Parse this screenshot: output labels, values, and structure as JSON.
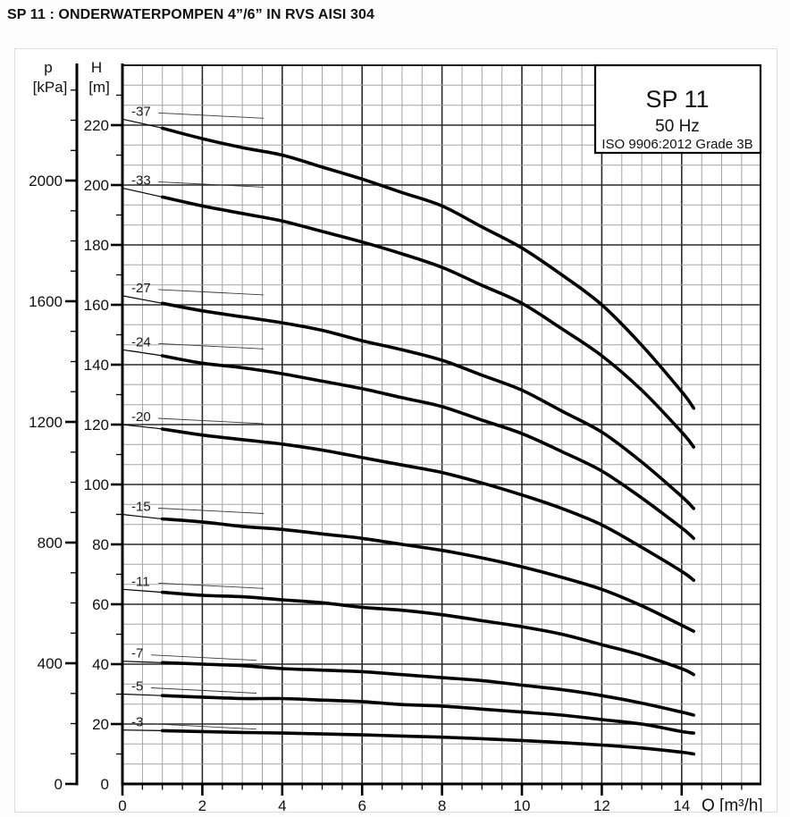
{
  "page_title": "SP 11 : ONDERWATERPOMPEN 4”/6” IN RVS AISI 304",
  "info_box": {
    "model": "SP 11",
    "frequency": "50 Hz",
    "standard": "ISO 9906:2012 Grade 3B"
  },
  "axes": {
    "pressure": {
      "name": "p",
      "unit": "[kPa]",
      "major_ticks": [
        0,
        400,
        800,
        1200,
        1600,
        2000
      ],
      "minor_step": 100,
      "minor_max": 2300
    },
    "head": {
      "name": "H",
      "unit": "[m]",
      "major_ticks": [
        0,
        20,
        40,
        60,
        80,
        100,
        120,
        140,
        160,
        180,
        200,
        220
      ],
      "minor_step": 10,
      "minor_max": 230,
      "max": 240
    },
    "flow": {
      "label": "Q [m³/h]",
      "major_ticks": [
        0,
        2,
        4,
        6,
        8,
        10,
        12,
        14
      ],
      "minor_step": 0.5,
      "max": 16
    }
  },
  "chart_data": {
    "type": "line",
    "title": "SP 11 50 Hz submersible pump performance curves (head vs flow)",
    "xlabel": "Q [m³/h]",
    "ylabel": "H [m]",
    "y2label": "p [kPa]",
    "xlim": [
      0,
      16
    ],
    "ylim": [
      0,
      240
    ],
    "y2lim_kpa": [
      0,
      2383
    ],
    "grid": "minor and major, on",
    "legend_position": "top-right box",
    "x": [
      0,
      1,
      2,
      3,
      4,
      5,
      6,
      7,
      8,
      9,
      10,
      11,
      12,
      13,
      14,
      14.3
    ],
    "thick_segment_x": [
      1,
      14.3
    ],
    "series": [
      {
        "name": "-37",
        "values": [
          222,
          219,
          215.5,
          212.5,
          210,
          206,
          202,
          197.5,
          193,
          186,
          179,
          170,
          160,
          146.5,
          131,
          125.5
        ]
      },
      {
        "name": "-33",
        "values": [
          199,
          196,
          193,
          190.5,
          188,
          184.5,
          181,
          177,
          172.5,
          166.5,
          160.5,
          152,
          143,
          131.5,
          117.5,
          112.5
        ]
      },
      {
        "name": "-27",
        "values": [
          163,
          160.5,
          158,
          156,
          154,
          151.5,
          148,
          145,
          141.5,
          136.5,
          131.5,
          124.5,
          117.5,
          107.5,
          96,
          92
        ]
      },
      {
        "name": "-24",
        "values": [
          145,
          143,
          140.5,
          139,
          137,
          134.5,
          132,
          129,
          126,
          121.5,
          117,
          111,
          104.5,
          95.5,
          85.5,
          82
        ]
      },
      {
        "name": "-20",
        "values": [
          120,
          118.5,
          116.5,
          115,
          113.5,
          111.5,
          109,
          106.5,
          104,
          100.5,
          96.5,
          92,
          86.5,
          79,
          71,
          68
        ]
      },
      {
        "name": "-15",
        "values": [
          90,
          88.5,
          87.5,
          86,
          85,
          83.5,
          82,
          80,
          78,
          75.5,
          72.5,
          69,
          65,
          59.5,
          53,
          51
        ]
      },
      {
        "name": "-11",
        "values": [
          65,
          64,
          63,
          62.5,
          61.5,
          60.5,
          59,
          58,
          56.5,
          54.5,
          52.5,
          50,
          46.5,
          43,
          38.5,
          36.5
        ]
      },
      {
        "name": "-7",
        "values": [
          41,
          40.5,
          40,
          39.5,
          38.5,
          38,
          37.5,
          36.5,
          35.5,
          34.5,
          33,
          31.5,
          29.5,
          27,
          24,
          23
        ]
      },
      {
        "name": "-5",
        "values": [
          30,
          29.5,
          29,
          28.5,
          28.5,
          28,
          27.5,
          26.5,
          26,
          25,
          24,
          23,
          21.5,
          20,
          17.5,
          17
        ]
      },
      {
        "name": "-3",
        "values": [
          18,
          17.8,
          17.5,
          17.2,
          17,
          16.7,
          16.4,
          16,
          15.6,
          15.1,
          14.5,
          13.8,
          13,
          12,
          10.6,
          10
        ]
      }
    ]
  },
  "colors": {
    "curve": "#000000",
    "grid_minor": "#a3a3a3",
    "grid_major": "#2a2a2a",
    "axis": "#000000",
    "text": "#111111",
    "panel_border": "#dcdcdc",
    "background": "#ffffff"
  }
}
